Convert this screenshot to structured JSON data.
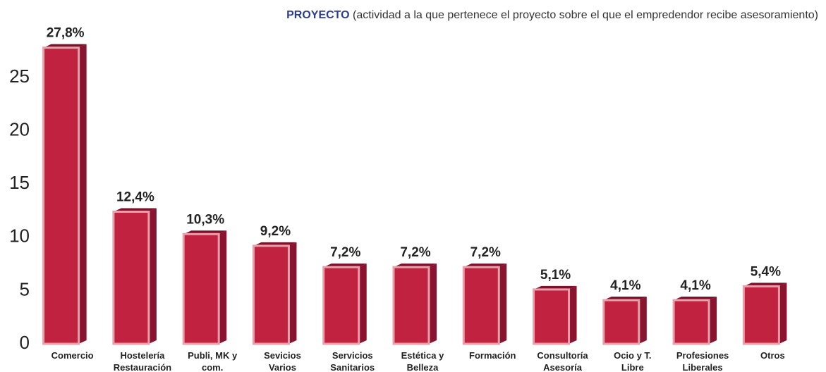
{
  "chart_data": {
    "type": "bar3d",
    "title": "PROYECTO",
    "subtitle": "(actividad a la que pertenece el proyecto sobre el que el empredendor recibe asesoramiento)",
    "categories": [
      [
        "Comercio"
      ],
      [
        "Hostelería",
        "Restauración"
      ],
      [
        "Publi, MK y",
        "com."
      ],
      [
        "Sevicios",
        "Varios"
      ],
      [
        "Servicios",
        "Sanitarios"
      ],
      [
        "Estética y",
        "Belleza"
      ],
      [
        "Formación"
      ],
      [
        "Consultoría",
        "Asesoría"
      ],
      [
        "Ocio y T.",
        "Libre"
      ],
      [
        "Profesiones",
        "Liberales"
      ],
      [
        "Otros"
      ]
    ],
    "values": [
      27.8,
      12.4,
      10.3,
      9.2,
      7.2,
      7.2,
      7.2,
      5.1,
      4.1,
      4.1,
      5.4
    ],
    "value_labels": [
      "27,8%",
      "12,4%",
      "10,3%",
      "9,2%",
      "7,2%",
      "7,2%",
      "7,2%",
      "5,1%",
      "4,1%",
      "4,1%",
      "5,4%"
    ],
    "color": "#c0223f",
    "ylim": [
      0,
      29
    ],
    "yticks": [
      0,
      5,
      10,
      15,
      20,
      25
    ],
    "grid": false
  }
}
